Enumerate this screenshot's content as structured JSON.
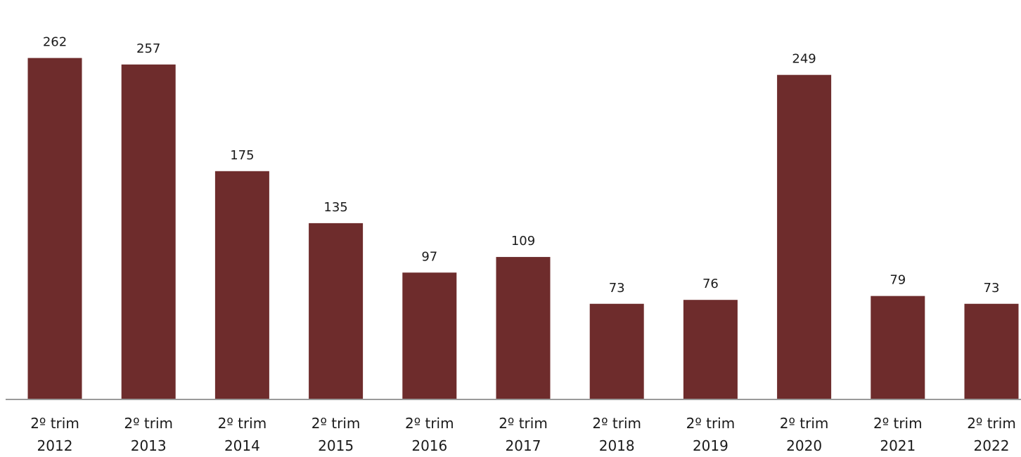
{
  "chart_data": {
    "type": "bar",
    "title": "",
    "xlabel": "",
    "ylabel": "",
    "categories": [
      [
        "2º trim",
        "2012"
      ],
      [
        "2º trim",
        "2013"
      ],
      [
        "2º trim",
        "2014"
      ],
      [
        "2º trim",
        "2015"
      ],
      [
        "2º trim",
        "2016"
      ],
      [
        "2º trim",
        "2017"
      ],
      [
        "2º trim",
        "2018"
      ],
      [
        "2º trim",
        "2019"
      ],
      [
        "2º trim",
        "2020"
      ],
      [
        "2º trim",
        "2021"
      ],
      [
        "2º trim",
        "2022"
      ]
    ],
    "values": [
      262,
      257,
      175,
      135,
      97,
      109,
      73,
      76,
      249,
      79,
      73
    ],
    "ylim": [
      0,
      285
    ],
    "grid": false,
    "legend": "none",
    "data_labels": true,
    "colors": {
      "bar": "#6e2c2c",
      "axis": "#9a9a9a"
    }
  }
}
